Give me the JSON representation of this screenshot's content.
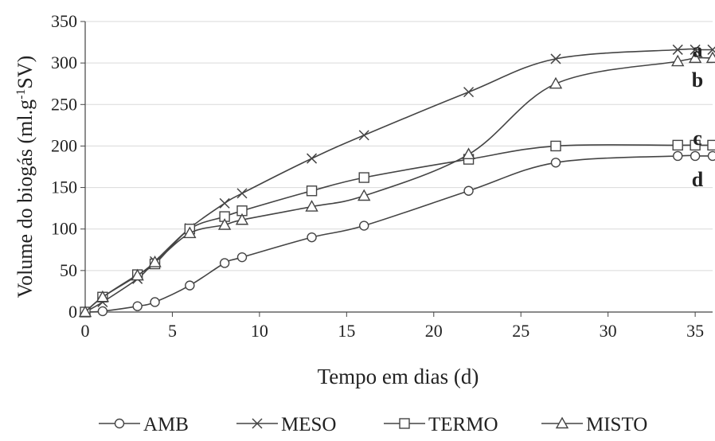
{
  "chart_data": {
    "type": "line",
    "xlabel": "Tempo em dias (d)",
    "ylabel": "Volume do biogás (ml.g-1SV)",
    "ylabel_parts": {
      "before": "Volume do biogás (ml.g",
      "sup": "-1",
      "after": "SV)"
    },
    "xlim": [
      0,
      36
    ],
    "ylim": [
      0,
      350
    ],
    "xticks": [
      0,
      5,
      10,
      15,
      20,
      25,
      30,
      35
    ],
    "yticks": [
      0,
      50,
      100,
      150,
      200,
      250,
      300,
      350
    ],
    "grid": "horizontal",
    "legend_position": "bottom",
    "annotations": [
      "a",
      "b",
      "c",
      "d"
    ],
    "series": [
      {
        "name": "AMB",
        "marker": "circle",
        "x": [
          0,
          1,
          3,
          4,
          6,
          8,
          9,
          13,
          16,
          22,
          27,
          34,
          35,
          36
        ],
        "y": [
          0,
          1,
          7,
          12,
          32,
          59,
          66,
          90,
          104,
          146,
          180,
          188,
          188,
          188
        ]
      },
      {
        "name": "MESO",
        "marker": "x",
        "x": [
          0,
          1,
          3,
          4,
          6,
          8,
          9,
          13,
          16,
          22,
          27,
          34,
          35,
          36
        ],
        "y": [
          0,
          12,
          40,
          61,
          101,
          131,
          143,
          185,
          213,
          265,
          305,
          316,
          316,
          316
        ]
      },
      {
        "name": "TERMO",
        "marker": "square",
        "x": [
          0,
          1,
          3,
          4,
          6,
          8,
          9,
          13,
          16,
          22,
          27,
          34,
          35,
          36
        ],
        "y": [
          0,
          18,
          45,
          58,
          100,
          115,
          122,
          146,
          162,
          184,
          200,
          201,
          201,
          201
        ]
      },
      {
        "name": "MISTO",
        "marker": "triangle",
        "x": [
          0,
          1,
          3,
          4,
          6,
          8,
          9,
          13,
          16,
          22,
          27,
          34,
          35,
          36
        ],
        "y": [
          0,
          18,
          44,
          60,
          95,
          105,
          111,
          127,
          140,
          190,
          275,
          302,
          306,
          306
        ]
      }
    ]
  }
}
